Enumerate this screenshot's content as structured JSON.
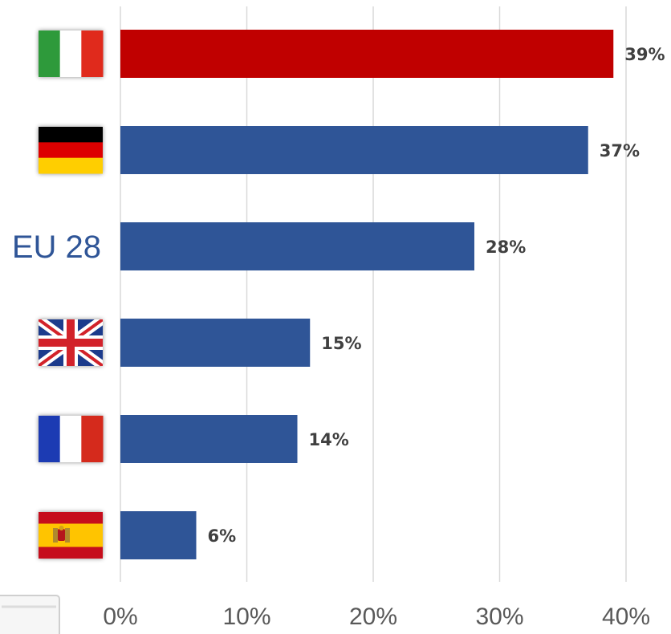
{
  "chart_data": {
    "type": "bar",
    "orientation": "horizontal",
    "categories": [
      {
        "label": "",
        "icon": "italy-flag-icon",
        "flag": {
          "kind": "vertical",
          "colors": [
            "#2e9a3b",
            "#ffffff",
            "#e02a1f"
          ]
        }
      },
      {
        "label": "",
        "icon": "germany-flag-icon",
        "flag": {
          "kind": "horizontal",
          "colors": [
            "#000000",
            "#dd0000",
            "#ffce00"
          ]
        }
      },
      {
        "label": "EU 28",
        "icon": "",
        "flag": null
      },
      {
        "label": "",
        "icon": "uk-flag-icon",
        "flag": {
          "kind": "union-jack",
          "colors": [
            "#1e3a8c",
            "#ffffff",
            "#d2232a"
          ]
        }
      },
      {
        "label": "",
        "icon": "france-flag-icon",
        "flag": {
          "kind": "vertical",
          "colors": [
            "#1f3bb3",
            "#ffffff",
            "#d52b1e"
          ]
        }
      },
      {
        "label": "",
        "icon": "spain-flag-icon",
        "flag": {
          "kind": "spain",
          "colors": [
            "#c60b1e",
            "#ffc400",
            "#c60b1e"
          ]
        }
      }
    ],
    "values": [
      39,
      37,
      28,
      15,
      14,
      6
    ],
    "data_labels": [
      "39%",
      "37%",
      "28%",
      "15%",
      "14%",
      "6%"
    ],
    "bar_colors": [
      "#c00000",
      "#2f5597",
      "#2f5597",
      "#2f5597",
      "#2f5597",
      "#2f5597"
    ],
    "x_ticks": [
      0,
      10,
      20,
      30,
      40
    ],
    "x_tick_labels": [
      "0%",
      "10%",
      "20%",
      "30%",
      "40%"
    ],
    "xlim": [
      0,
      40
    ],
    "grid": "vertical",
    "legend": "none",
    "title": "",
    "xlabel": "",
    "ylabel": ""
  },
  "colors": {
    "highlight_bar": "#c00000",
    "default_bar": "#2f5597",
    "gridline": "#d9d9d9",
    "tick_text": "#595959",
    "data_label_text": "#404040",
    "category_text": "#2f5597"
  }
}
